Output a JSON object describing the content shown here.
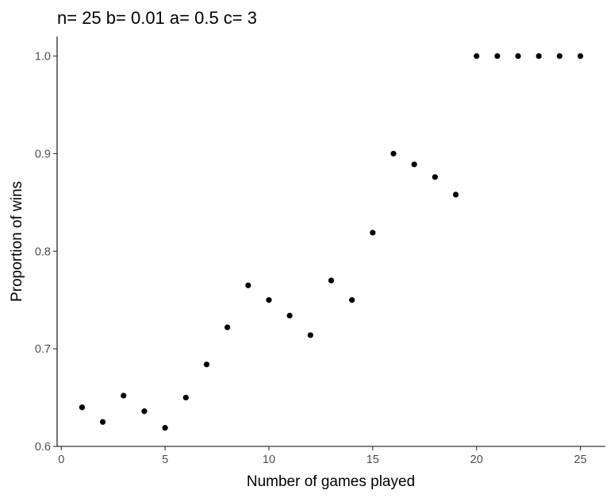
{
  "chart_data": {
    "type": "scatter",
    "title": "n= 25 b= 0.01 a= 0.5 c= 3",
    "xlabel": "Number of games played",
    "ylabel": "Proportion of wins",
    "xlim": [
      -0.2,
      26.2
    ],
    "ylim": [
      0.6,
      1.02
    ],
    "x_ticks": [
      0,
      5,
      10,
      15,
      20,
      25
    ],
    "y_ticks": [
      0.6,
      0.7,
      0.8,
      0.9,
      1.0
    ],
    "x_tick_labels": [
      "0",
      "5",
      "10",
      "15",
      "20",
      "25"
    ],
    "y_tick_labels": [
      "0.6",
      "0.7",
      "0.8",
      "0.9",
      "1.0"
    ],
    "grid": false,
    "legend": "none",
    "point_color": "#000000",
    "x": [
      1,
      2,
      3,
      4,
      5,
      6,
      7,
      8,
      9,
      10,
      11,
      12,
      13,
      14,
      15,
      16,
      17,
      18,
      19,
      20,
      21,
      22,
      23,
      24,
      25
    ],
    "y": [
      0.64,
      0.625,
      0.652,
      0.636,
      0.619,
      0.65,
      0.684,
      0.722,
      0.765,
      0.75,
      0.734,
      0.714,
      0.77,
      0.75,
      0.819,
      0.9,
      0.889,
      0.876,
      0.858,
      1.0,
      1.0,
      1.0,
      1.0,
      1.0,
      1.0
    ]
  }
}
